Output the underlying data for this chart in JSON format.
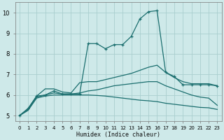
{
  "xlabel": "Humidex (Indice chaleur)",
  "xlim": [
    -0.5,
    23.5
  ],
  "ylim": [
    4.75,
    10.5
  ],
  "xticks": [
    0,
    1,
    2,
    3,
    4,
    5,
    6,
    7,
    8,
    9,
    10,
    11,
    12,
    13,
    14,
    15,
    16,
    17,
    18,
    19,
    20,
    21,
    22,
    23
  ],
  "yticks": [
    5,
    6,
    7,
    8,
    9,
    10
  ],
  "bg_color": "#cee9e9",
  "grid_color": "#aacece",
  "line_color": "#1a6e6e",
  "lines": [
    {
      "x": [
        0,
        1,
        2,
        3,
        4,
        5,
        6,
        7,
        8,
        9,
        10,
        11,
        12,
        13,
        14,
        15,
        16,
        17,
        18,
        19,
        20,
        21,
        22,
        23
      ],
      "y": [
        5.0,
        5.35,
        5.95,
        6.0,
        6.2,
        6.05,
        6.05,
        6.05,
        8.5,
        8.5,
        8.25,
        8.45,
        8.45,
        8.85,
        9.7,
        10.05,
        10.1,
        7.1,
        6.9,
        6.5,
        6.5,
        6.5,
        6.5,
        6.45
      ],
      "marker": true
    },
    {
      "x": [
        0,
        1,
        2,
        3,
        4,
        5,
        6,
        7,
        8,
        9,
        10,
        11,
        12,
        13,
        14,
        15,
        16,
        17,
        18,
        19,
        20,
        21,
        22,
        23
      ],
      "y": [
        5.0,
        5.3,
        5.95,
        6.3,
        6.3,
        6.15,
        6.1,
        6.6,
        6.65,
        6.65,
        6.75,
        6.85,
        6.95,
        7.05,
        7.2,
        7.35,
        7.45,
        7.1,
        6.85,
        6.65,
        6.55,
        6.55,
        6.55,
        6.45
      ],
      "marker": false
    },
    {
      "x": [
        0,
        1,
        2,
        3,
        4,
        5,
        6,
        7,
        8,
        9,
        10,
        11,
        12,
        13,
        14,
        15,
        16,
        17,
        18,
        19,
        20,
        21,
        22,
        23
      ],
      "y": [
        5.0,
        5.3,
        5.9,
        6.0,
        6.1,
        6.05,
        6.05,
        6.1,
        6.2,
        6.25,
        6.35,
        6.45,
        6.5,
        6.55,
        6.6,
        6.65,
        6.65,
        6.45,
        6.3,
        6.15,
        6.0,
        5.9,
        5.85,
        5.5
      ],
      "marker": false
    },
    {
      "x": [
        0,
        1,
        2,
        3,
        4,
        5,
        6,
        7,
        8,
        9,
        10,
        11,
        12,
        13,
        14,
        15,
        16,
        17,
        18,
        19,
        20,
        21,
        22,
        23
      ],
      "y": [
        5.0,
        5.25,
        5.85,
        5.95,
        6.0,
        6.0,
        6.0,
        6.0,
        6.0,
        5.98,
        5.95,
        5.9,
        5.85,
        5.8,
        5.75,
        5.72,
        5.68,
        5.6,
        5.55,
        5.5,
        5.45,
        5.4,
        5.38,
        5.3
      ],
      "marker": false
    }
  ]
}
